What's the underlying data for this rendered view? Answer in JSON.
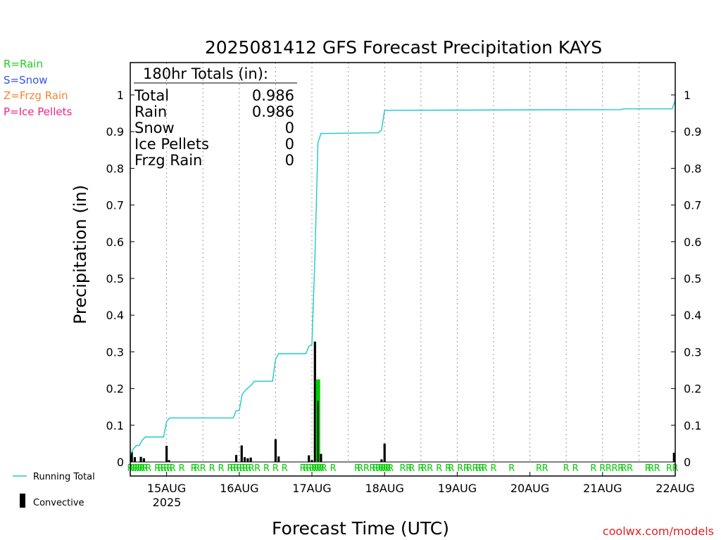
{
  "colors": {
    "running_total": "#1ec8c8",
    "bar": "#000000",
    "rain_bar": "#00cc00",
    "rain_marker": "#00cc00",
    "legend_rain": "#22cc22",
    "legend_snow": "#3355ee",
    "legend_zr": "#ee8833",
    "legend_ip": "#ee2288",
    "credit": "#dd2222",
    "grid": "#999999"
  },
  "legend_left": {
    "rain": "R=Rain",
    "snow": "S=Snow",
    "frzg": "Z=Frzg Rain",
    "ice": "P=Ice Pellets"
  },
  "legend_bottom": {
    "running_total": "Running Total",
    "convective": "Convective"
  },
  "totals_box": {
    "header": "180hr Totals (in):",
    "rows": [
      {
        "label": "Total",
        "value": "0.986"
      },
      {
        "label": "Rain",
        "value": "0.986"
      },
      {
        "label": "Snow",
        "value": "0"
      },
      {
        "label": "Ice Pellets",
        "value": "0"
      },
      {
        "label": "Frzg Rain",
        "value": "0"
      }
    ]
  },
  "credit": "coolwx.com/models",
  "year_label": "2025",
  "chart_data": {
    "type": "bar",
    "title": "2025081412 GFS Forecast Precipitation KAYS",
    "xlabel": "Forecast Time (UTC)",
    "ylabel": "Precipitation (in)",
    "xlim_hours": [
      0,
      180
    ],
    "x_tick_hours": [
      12,
      36,
      60,
      84,
      108,
      132,
      156,
      180
    ],
    "x_tick_labels": [
      "15AUG",
      "16AUG",
      "17AUG",
      "18AUG",
      "19AUG",
      "20AUG",
      "21AUG",
      "22AUG"
    ],
    "ylim": [
      0,
      1
    ],
    "y_ticks": [
      0,
      0.1,
      0.2,
      0.3,
      0.4,
      0.5,
      0.6,
      0.7,
      0.8,
      0.9,
      1
    ],
    "y_tick_labels": [
      "0",
      "0.1",
      "0.2",
      "0.3",
      "0.4",
      "0.5",
      "0.6",
      "0.7",
      "0.8",
      "0.9",
      "1"
    ],
    "grid": "vertical dotted at day boundaries",
    "running_total": {
      "name": "Running Total",
      "points": [
        [
          0,
          0.02
        ],
        [
          1,
          0.035
        ],
        [
          2,
          0.045
        ],
        [
          3,
          0.045
        ],
        [
          4,
          0.06
        ],
        [
          5,
          0.068
        ],
        [
          11,
          0.068
        ],
        [
          12,
          0.11
        ],
        [
          13,
          0.12
        ],
        [
          34,
          0.12
        ],
        [
          35,
          0.14
        ],
        [
          36,
          0.14
        ],
        [
          37,
          0.185
        ],
        [
          38,
          0.195
        ],
        [
          40,
          0.21
        ],
        [
          41,
          0.22
        ],
        [
          47,
          0.22
        ],
        [
          48,
          0.28
        ],
        [
          49,
          0.295
        ],
        [
          58,
          0.295
        ],
        [
          59,
          0.315
        ],
        [
          60,
          0.32
        ],
        [
          61,
          0.56
        ],
        [
          62,
          0.87
        ],
        [
          63,
          0.895
        ],
        [
          82,
          0.897
        ],
        [
          83,
          0.905
        ],
        [
          84,
          0.958
        ],
        [
          162,
          0.96
        ],
        [
          163,
          0.962
        ],
        [
          179,
          0.962
        ],
        [
          180,
          0.986
        ]
      ]
    },
    "bars": {
      "name": "Convective",
      "series": [
        {
          "hour": 0.5,
          "value": 0.027,
          "conv": 1
        },
        {
          "hour": 1.5,
          "value": 0.013,
          "conv": 1
        },
        {
          "hour": 3.5,
          "value": 0.014,
          "conv": 1
        },
        {
          "hour": 4.5,
          "value": 0.01,
          "conv": 1
        },
        {
          "hour": 12,
          "value": 0.044,
          "conv": 1
        },
        {
          "hour": 12.8,
          "value": 0.005,
          "conv": 1
        },
        {
          "hour": 35,
          "value": 0.019,
          "conv": 1
        },
        {
          "hour": 36.8,
          "value": 0.045,
          "conv": 1
        },
        {
          "hour": 37.8,
          "value": 0.013,
          "conv": 1
        },
        {
          "hour": 38.8,
          "value": 0.01,
          "conv": 1
        },
        {
          "hour": 39.8,
          "value": 0.012,
          "conv": 1
        },
        {
          "hour": 48,
          "value": 0.062,
          "conv": 1
        },
        {
          "hour": 49,
          "value": 0.015,
          "conv": 1
        },
        {
          "hour": 59,
          "value": 0.018,
          "conv": 1
        },
        {
          "hour": 60,
          "value": 0.005,
          "conv": 1
        },
        {
          "hour": 61,
          "value": 0.328,
          "conv": 1
        },
        {
          "hour": 62,
          "value": 0.225,
          "conv": 0.74
        },
        {
          "hour": 63,
          "value": 0.022,
          "conv": 1
        },
        {
          "hour": 83,
          "value": 0.007,
          "conv": 1
        },
        {
          "hour": 84,
          "value": 0.05,
          "conv": 1
        },
        {
          "hour": 179.6,
          "value": 0.025,
          "conv": 1
        }
      ]
    },
    "rain_markers": {
      "label": "R",
      "hours": [
        0,
        0.8,
        1.6,
        2.4,
        3.2,
        4,
        4.8,
        6,
        9,
        10,
        11,
        12,
        13,
        14,
        17,
        21,
        22,
        24,
        27,
        30,
        33,
        34,
        35,
        36,
        37,
        38,
        39,
        40,
        42,
        45,
        48,
        51,
        57,
        58,
        59,
        60,
        60.8,
        61.6,
        62.4,
        63.2,
        64,
        67,
        75,
        76,
        78,
        80,
        81,
        82,
        82.8,
        83.6,
        84.4,
        85.2,
        86,
        90,
        92,
        93,
        96,
        97,
        99,
        102,
        105,
        106,
        109,
        111,
        112,
        114,
        115,
        116,
        117,
        120,
        126,
        135,
        137,
        144,
        147,
        153,
        156,
        158,
        160,
        162,
        163,
        165,
        171,
        172,
        174,
        178,
        180
      ]
    }
  }
}
